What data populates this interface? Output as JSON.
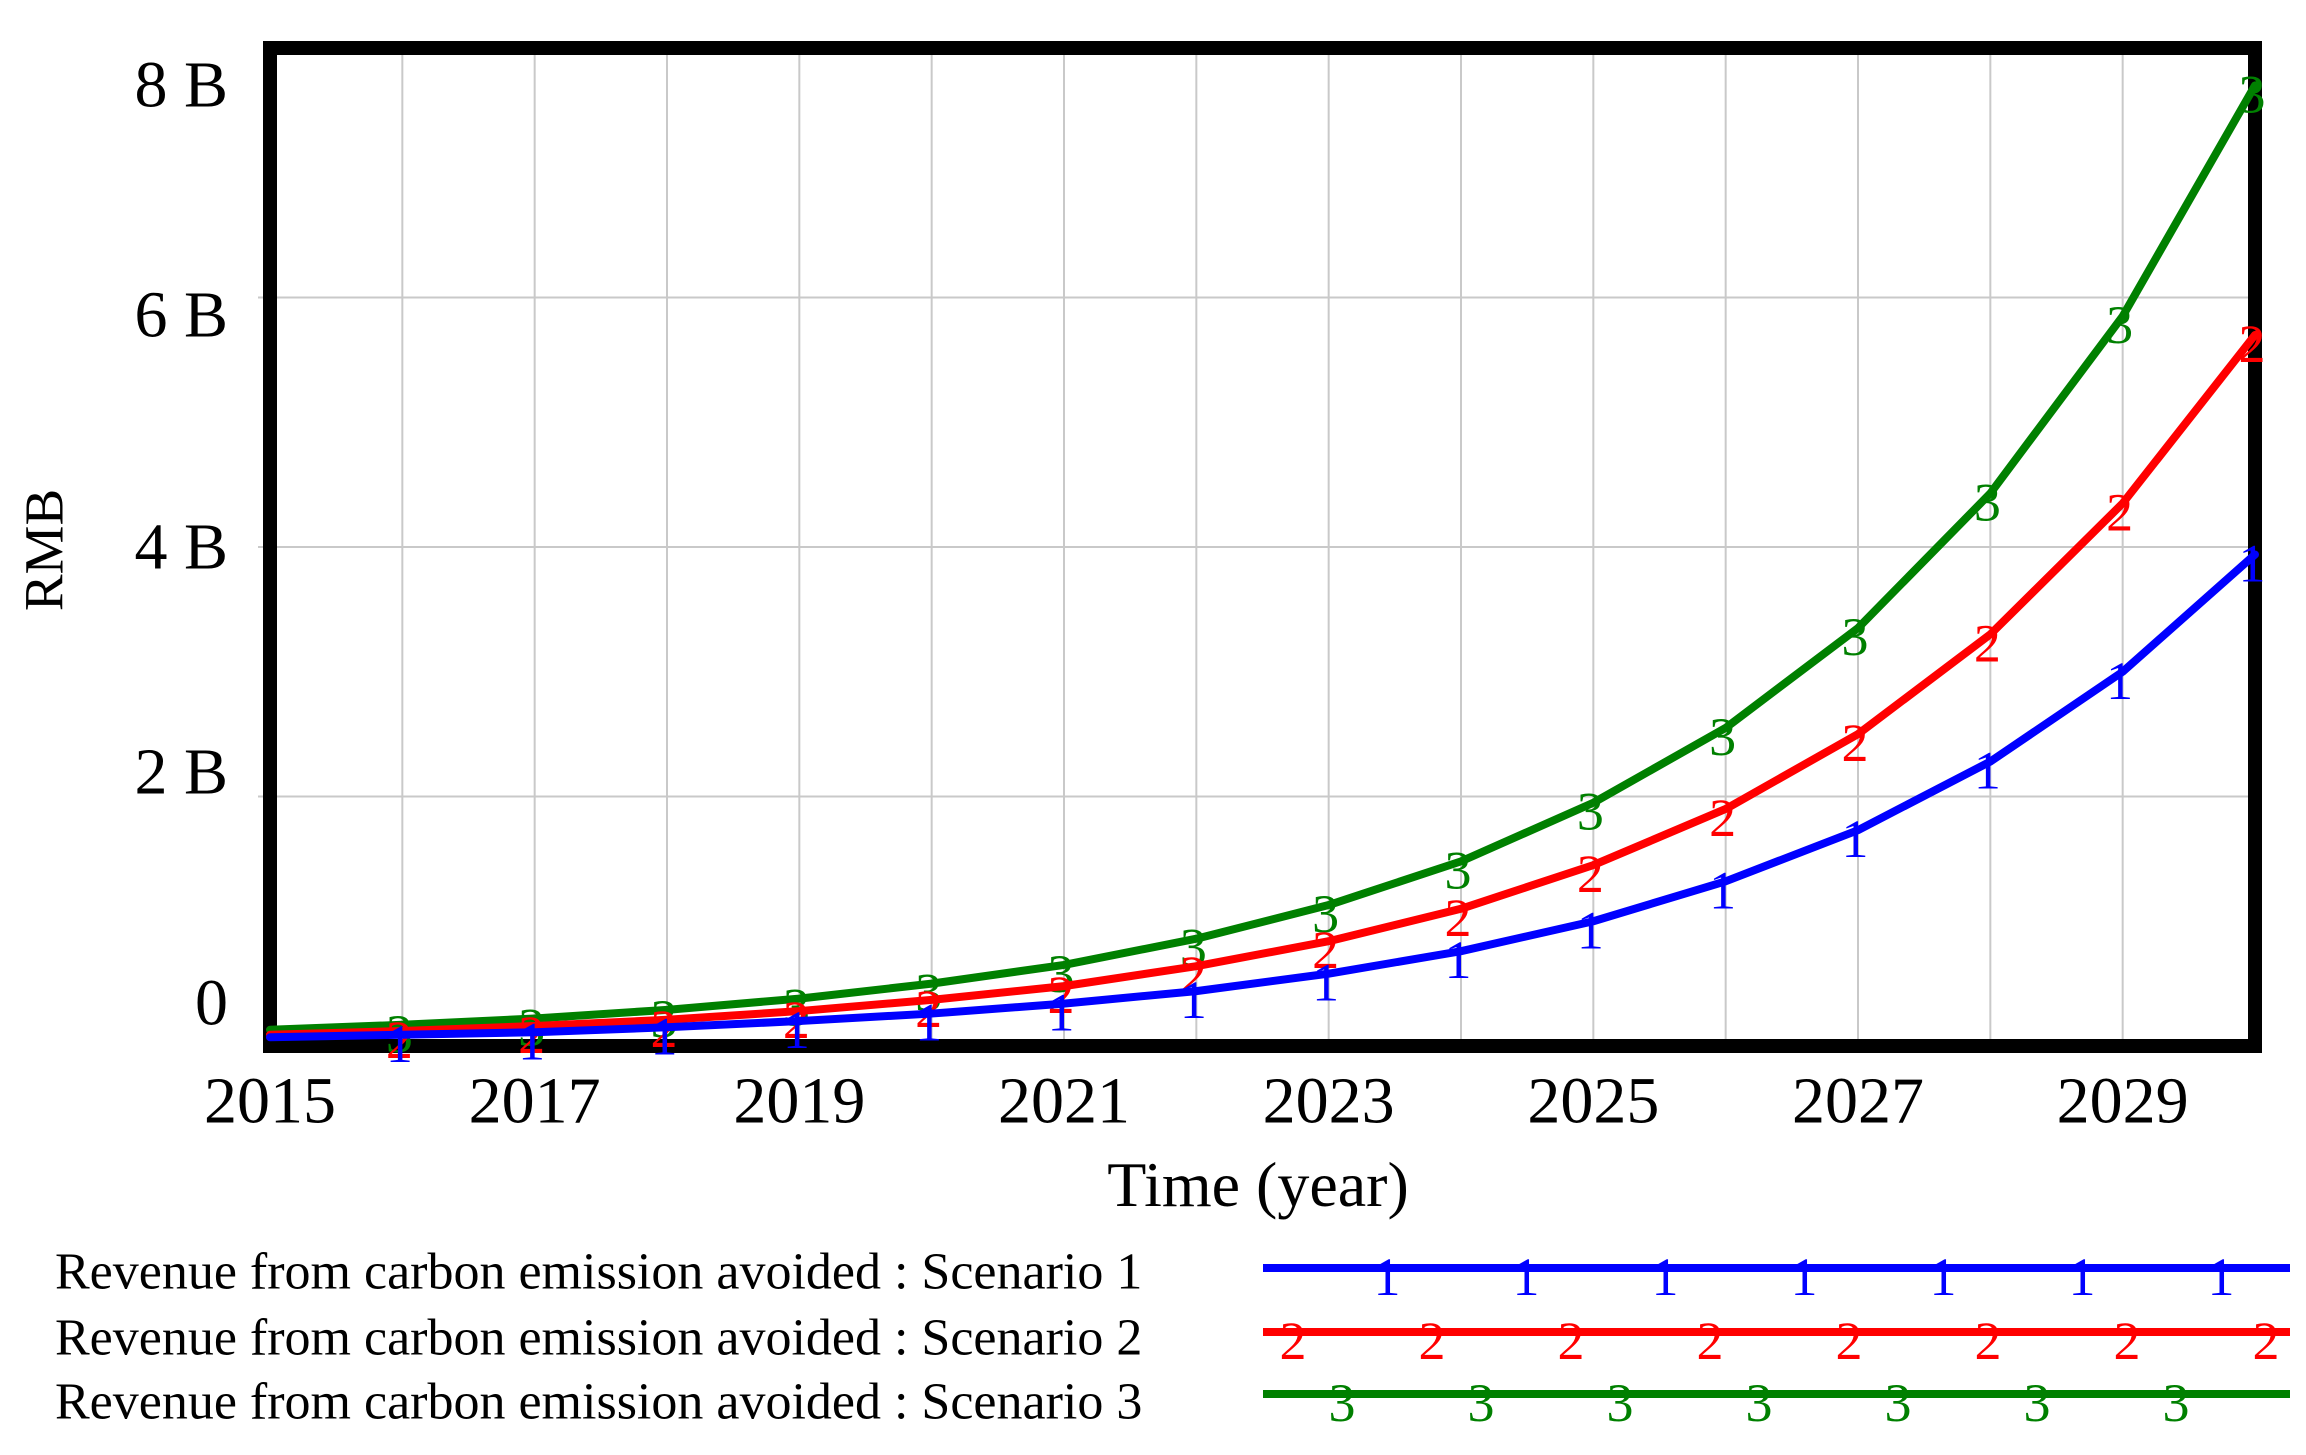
{
  "chart_data": {
    "type": "line",
    "title": "",
    "xlabel": "Time (year)",
    "ylabel": "RMB",
    "unit": "billion RMB (B)",
    "x": [
      2015,
      2016,
      2017,
      2018,
      2019,
      2020,
      2021,
      2022,
      2023,
      2024,
      2025,
      2026,
      2027,
      2028,
      2029,
      2030
    ],
    "xlim": [
      2015,
      2030
    ],
    "ylim_B": [
      0,
      8
    ],
    "grid": true,
    "legend_position": "bottom-left",
    "xtick_values": [
      2015,
      2017,
      2019,
      2021,
      2023,
      2025,
      2027,
      2029
    ],
    "xtick_labels": [
      "2015",
      "2017",
      "2019",
      "2021",
      "2023",
      "2025",
      "2027",
      "2029"
    ],
    "ytick_values_B": [
      0,
      2,
      4,
      6,
      8
    ],
    "ytick_labels": [
      "0",
      "2 B",
      "4 B",
      "6 B",
      "8 B"
    ],
    "series": [
      {
        "name": "Revenue from carbon emission avoided : Scenario 1",
        "marker": "1",
        "color": "#0000ff",
        "values_B": [
          0.07,
          0.09,
          0.11,
          0.15,
          0.2,
          0.26,
          0.34,
          0.44,
          0.58,
          0.76,
          1.0,
          1.32,
          1.73,
          2.28,
          3.0,
          3.94
        ]
      },
      {
        "name": "Revenue from carbon emission avoided : Scenario 2",
        "marker": "2",
        "color": "#ff0000",
        "values_B": [
          0.09,
          0.12,
          0.16,
          0.21,
          0.28,
          0.37,
          0.48,
          0.64,
          0.84,
          1.1,
          1.45,
          1.9,
          2.5,
          3.3,
          4.35,
          5.7
        ]
      },
      {
        "name": "Revenue from carbon emission avoided : Scenario 3",
        "marker": "3",
        "color": "#008000",
        "values_B": [
          0.13,
          0.17,
          0.22,
          0.29,
          0.38,
          0.5,
          0.65,
          0.86,
          1.13,
          1.48,
          1.95,
          2.55,
          3.35,
          4.43,
          5.85,
          7.7
        ]
      }
    ]
  },
  "colors": {
    "background": "#ffffff",
    "axis_border": "#000000",
    "gridline": "#c9c9c9",
    "text": "#000000",
    "scenario1": "#0000ff",
    "scenario2": "#ff0000",
    "scenario3": "#008000"
  }
}
